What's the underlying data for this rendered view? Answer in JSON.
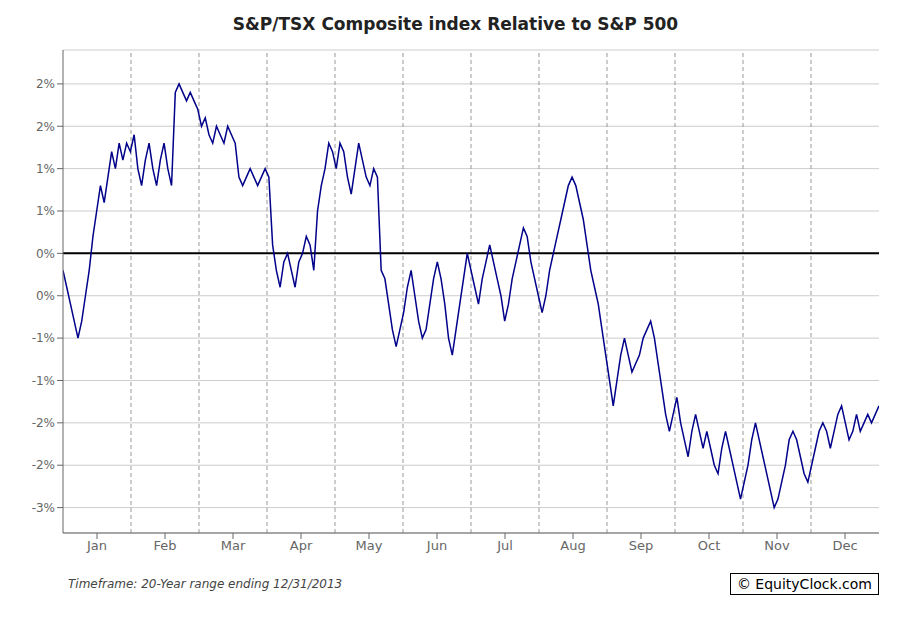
{
  "chart_data": {
    "type": "line",
    "title": "S&P/TSX Composite index Relative to S&P 500",
    "annotations": [
      "© EquityClock.com",
      "Timeframe: 20-Year range ending 12/31/2013"
    ],
    "color": "#00008B",
    "grid": true,
    "xlim": [
      0,
      12
    ],
    "xticks": [
      {
        "value": 0.5,
        "label": "Jan"
      },
      {
        "value": 1.5,
        "label": "Feb"
      },
      {
        "value": 2.5,
        "label": "Mar"
      },
      {
        "value": 3.5,
        "label": "Apr"
      },
      {
        "value": 4.5,
        "label": "May"
      },
      {
        "value": 5.5,
        "label": "Jun"
      },
      {
        "value": 6.5,
        "label": "Jul"
      },
      {
        "value": 7.5,
        "label": "Aug"
      },
      {
        "value": 8.5,
        "label": "Sep"
      },
      {
        "value": 9.5,
        "label": "Oct"
      },
      {
        "value": 10.5,
        "label": "Nov"
      },
      {
        "value": 11.5,
        "label": "Dec"
      }
    ],
    "ylim": [
      -0.033,
      0.024
    ],
    "yticks": [
      {
        "value": -0.03,
        "label": "-3%"
      },
      {
        "value": -0.025,
        "label": "-2%"
      },
      {
        "value": -0.02,
        "label": "-2%"
      },
      {
        "value": -0.015,
        "label": "-1%"
      },
      {
        "value": -0.01,
        "label": "-1%"
      },
      {
        "value": -0.005,
        "label": "0%"
      },
      {
        "value": 0.0,
        "label": "0%"
      },
      {
        "value": 0.005,
        "label": "1%"
      },
      {
        "value": 0.01,
        "label": "1%"
      },
      {
        "value": 0.015,
        "label": "2%"
      },
      {
        "value": 0.02,
        "label": "2%"
      }
    ],
    "values": [
      -0.002,
      -0.004,
      -0.006,
      -0.008,
      -0.01,
      -0.008,
      -0.005,
      -0.002,
      0.002,
      0.005,
      0.008,
      0.006,
      0.009,
      0.012,
      0.01,
      0.013,
      0.011,
      0.013,
      0.012,
      0.014,
      0.01,
      0.008,
      0.011,
      0.013,
      0.01,
      0.008,
      0.011,
      0.013,
      0.01,
      0.008,
      0.019,
      0.02,
      0.019,
      0.018,
      0.019,
      0.018,
      0.017,
      0.015,
      0.016,
      0.014,
      0.013,
      0.015,
      0.014,
      0.013,
      0.015,
      0.014,
      0.013,
      0.009,
      0.008,
      0.009,
      0.01,
      0.009,
      0.008,
      0.009,
      0.01,
      0.009,
      0.001,
      -0.002,
      -0.004,
      -0.001,
      0.0,
      -0.002,
      -0.004,
      -0.001,
      0.0,
      0.002,
      0.001,
      -0.002,
      0.005,
      0.008,
      0.01,
      0.013,
      0.012,
      0.01,
      0.013,
      0.012,
      0.009,
      0.007,
      0.01,
      0.013,
      0.011,
      0.009,
      0.008,
      0.01,
      0.009,
      -0.002,
      -0.003,
      -0.006,
      -0.009,
      -0.011,
      -0.009,
      -0.007,
      -0.004,
      -0.002,
      -0.005,
      -0.008,
      -0.01,
      -0.009,
      -0.006,
      -0.003,
      -0.001,
      -0.003,
      -0.006,
      -0.01,
      -0.012,
      -0.009,
      -0.006,
      -0.003,
      0.0,
      -0.002,
      -0.004,
      -0.006,
      -0.003,
      -0.001,
      0.001,
      -0.001,
      -0.003,
      -0.005,
      -0.008,
      -0.006,
      -0.003,
      -0.001,
      0.001,
      0.003,
      0.002,
      -0.001,
      -0.003,
      -0.005,
      -0.007,
      -0.005,
      -0.002,
      0.0,
      0.002,
      0.004,
      0.006,
      0.008,
      0.009,
      0.008,
      0.006,
      0.004,
      0.001,
      -0.002,
      -0.004,
      -0.006,
      -0.009,
      -0.012,
      -0.015,
      -0.018,
      -0.015,
      -0.012,
      -0.01,
      -0.012,
      -0.014,
      -0.013,
      -0.012,
      -0.01,
      -0.009,
      -0.008,
      -0.01,
      -0.013,
      -0.016,
      -0.019,
      -0.021,
      -0.019,
      -0.017,
      -0.02,
      -0.022,
      -0.024,
      -0.021,
      -0.019,
      -0.021,
      -0.023,
      -0.021,
      -0.023,
      -0.025,
      -0.026,
      -0.023,
      -0.021,
      -0.023,
      -0.025,
      -0.027,
      -0.029,
      -0.027,
      -0.025,
      -0.022,
      -0.02,
      -0.022,
      -0.024,
      -0.026,
      -0.028,
      -0.03,
      -0.029,
      -0.027,
      -0.025,
      -0.022,
      -0.021,
      -0.022,
      -0.024,
      -0.026,
      -0.027,
      -0.025,
      -0.023,
      -0.021,
      -0.02,
      -0.021,
      -0.023,
      -0.021,
      -0.019,
      -0.018,
      -0.02,
      -0.022,
      -0.021,
      -0.019,
      -0.021,
      -0.02,
      -0.019,
      -0.02,
      -0.019,
      -0.018
    ]
  }
}
